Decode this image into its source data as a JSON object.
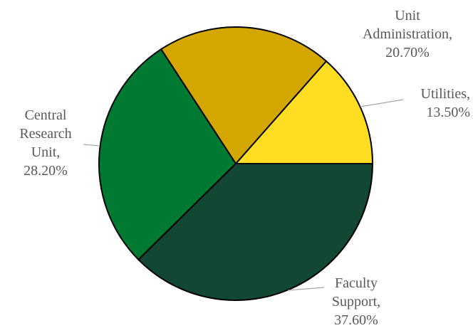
{
  "chart_data": {
    "type": "pie",
    "slices": [
      {
        "name": "Utilities",
        "value": 13.5,
        "label": [
          "Utilities,",
          "13.50%"
        ],
        "color": "#FFDD22"
      },
      {
        "name": "Unit Administration",
        "value": 20.7,
        "label": [
          "Unit",
          "Administration,",
          "20.70%"
        ],
        "color": "#D4A600"
      },
      {
        "name": "Central Research Unit",
        "value": 28.2,
        "label": [
          "Central",
          "Research",
          "Unit,",
          "28.20%"
        ],
        "color": "#007A33"
      },
      {
        "name": "Faculty Support",
        "value": 37.6,
        "label": [
          "Faculty",
          "Support,",
          "37.60%"
        ],
        "color": "#124734"
      }
    ],
    "start_angle_deg": 0,
    "direction": "counterclockwise",
    "legend": "none",
    "title": ""
  }
}
